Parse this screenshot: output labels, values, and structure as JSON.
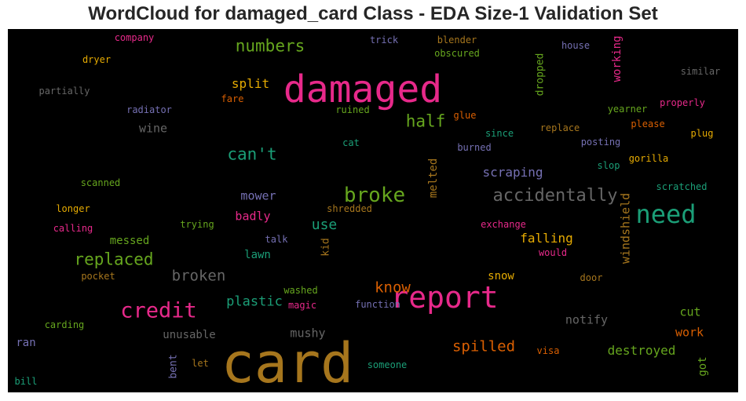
{
  "chart_data": {
    "type": "wordcloud",
    "title": "WordCloud for damaged_card Class - EDA Size-1 Validation Set",
    "colors": {
      "pink": "#e7298a",
      "gold": "#a6761d",
      "green": "#66a61e",
      "teal": "#1b9e77",
      "orange": "#d95f02",
      "purple": "#7570b3",
      "yellow": "#e6ab02",
      "gray": "#666666"
    },
    "words": [
      {
        "text": "card",
        "color": "gold",
        "orientation": "horizontal"
      },
      {
        "text": "damaged",
        "color": "pink",
        "orientation": "horizontal"
      },
      {
        "text": "report",
        "color": "pink",
        "orientation": "horizontal"
      },
      {
        "text": "need",
        "color": "teal",
        "orientation": "horizontal"
      },
      {
        "text": "credit",
        "color": "pink",
        "orientation": "horizontal"
      },
      {
        "text": "broke",
        "color": "green",
        "orientation": "horizontal"
      },
      {
        "text": "accidentally",
        "color": "gray",
        "orientation": "horizontal"
      },
      {
        "text": "replaced",
        "color": "green",
        "orientation": "horizontal"
      },
      {
        "text": "can't",
        "color": "teal",
        "orientation": "horizontal"
      },
      {
        "text": "numbers",
        "color": "green",
        "orientation": "horizontal"
      },
      {
        "text": "half",
        "color": "green",
        "orientation": "horizontal"
      },
      {
        "text": "broken",
        "color": "gray",
        "orientation": "horizontal"
      },
      {
        "text": "spilled",
        "color": "orange",
        "orientation": "horizontal"
      },
      {
        "text": "know",
        "color": "orange",
        "orientation": "horizontal"
      },
      {
        "text": "plastic",
        "color": "teal",
        "orientation": "horizontal"
      },
      {
        "text": "use",
        "color": "teal",
        "orientation": "horizontal"
      },
      {
        "text": "scraping",
        "color": "purple",
        "orientation": "horizontal"
      },
      {
        "text": "falling",
        "color": "yellow",
        "orientation": "horizontal"
      },
      {
        "text": "destroyed",
        "color": "green",
        "orientation": "horizontal"
      },
      {
        "text": "split",
        "color": "yellow",
        "orientation": "horizontal"
      },
      {
        "text": "working",
        "color": "pink",
        "orientation": "vertical"
      },
      {
        "text": "windshield",
        "color": "gold",
        "orientation": "vertical"
      },
      {
        "text": "melted",
        "color": "gold",
        "orientation": "vertical"
      },
      {
        "text": "mower",
        "color": "purple",
        "orientation": "horizontal"
      },
      {
        "text": "badly",
        "color": "pink",
        "orientation": "horizontal"
      },
      {
        "text": "messed",
        "color": "green",
        "orientation": "horizontal"
      },
      {
        "text": "lawn",
        "color": "teal",
        "orientation": "horizontal"
      },
      {
        "text": "wine",
        "color": "gray",
        "orientation": "horizontal"
      },
      {
        "text": "mushy",
        "color": "gray",
        "orientation": "horizontal"
      },
      {
        "text": "unusable",
        "color": "gray",
        "orientation": "horizontal"
      },
      {
        "text": "notify",
        "color": "gray",
        "orientation": "horizontal"
      },
      {
        "text": "snow",
        "color": "yellow",
        "orientation": "horizontal"
      },
      {
        "text": "cut",
        "color": "green",
        "orientation": "horizontal"
      },
      {
        "text": "work",
        "color": "orange",
        "orientation": "horizontal"
      },
      {
        "text": "got",
        "color": "green",
        "orientation": "vertical"
      },
      {
        "text": "bent",
        "color": "purple",
        "orientation": "vertical"
      },
      {
        "text": "kid",
        "color": "gold",
        "orientation": "vertical"
      },
      {
        "text": "ran",
        "color": "purple",
        "orientation": "horizontal"
      },
      {
        "text": "dropped",
        "color": "green",
        "orientation": "vertical"
      },
      {
        "text": "company",
        "color": "pink",
        "orientation": "horizontal"
      },
      {
        "text": "dryer",
        "color": "yellow",
        "orientation": "horizontal"
      },
      {
        "text": "partially",
        "color": "gray",
        "orientation": "horizontal"
      },
      {
        "text": "radiator",
        "color": "purple",
        "orientation": "horizontal"
      },
      {
        "text": "fare",
        "color": "orange",
        "orientation": "horizontal"
      },
      {
        "text": "trick",
        "color": "purple",
        "orientation": "horizontal"
      },
      {
        "text": "blender",
        "color": "gold",
        "orientation": "horizontal"
      },
      {
        "text": "obscured",
        "color": "green",
        "orientation": "horizontal"
      },
      {
        "text": "house",
        "color": "purple",
        "orientation": "horizontal"
      },
      {
        "text": "similar",
        "color": "gray",
        "orientation": "horizontal"
      },
      {
        "text": "ruined",
        "color": "green",
        "orientation": "horizontal"
      },
      {
        "text": "glue",
        "color": "orange",
        "orientation": "horizontal"
      },
      {
        "text": "yearner",
        "color": "green",
        "orientation": "horizontal"
      },
      {
        "text": "properly",
        "color": "pink",
        "orientation": "horizontal"
      },
      {
        "text": "since",
        "color": "teal",
        "orientation": "horizontal"
      },
      {
        "text": "replace",
        "color": "gold",
        "orientation": "horizontal"
      },
      {
        "text": "please",
        "color": "orange",
        "orientation": "horizontal"
      },
      {
        "text": "plug",
        "color": "yellow",
        "orientation": "horizontal"
      },
      {
        "text": "cat",
        "color": "teal",
        "orientation": "horizontal"
      },
      {
        "text": "burned",
        "color": "purple",
        "orientation": "horizontal"
      },
      {
        "text": "posting",
        "color": "purple",
        "orientation": "horizontal"
      },
      {
        "text": "gorilla",
        "color": "yellow",
        "orientation": "horizontal"
      },
      {
        "text": "slop",
        "color": "teal",
        "orientation": "horizontal"
      },
      {
        "text": "scratched",
        "color": "teal",
        "orientation": "horizontal"
      },
      {
        "text": "scanned",
        "color": "green",
        "orientation": "horizontal"
      },
      {
        "text": "longer",
        "color": "yellow",
        "orientation": "horizontal"
      },
      {
        "text": "trying",
        "color": "green",
        "orientation": "horizontal"
      },
      {
        "text": "shredded",
        "color": "gold",
        "orientation": "horizontal"
      },
      {
        "text": "calling",
        "color": "pink",
        "orientation": "horizontal"
      },
      {
        "text": "talk",
        "color": "purple",
        "orientation": "horizontal"
      },
      {
        "text": "exchange",
        "color": "pink",
        "orientation": "horizontal"
      },
      {
        "text": "would",
        "color": "pink",
        "orientation": "horizontal"
      },
      {
        "text": "pocket",
        "color": "gold",
        "orientation": "horizontal"
      },
      {
        "text": "washed",
        "color": "green",
        "orientation": "horizontal"
      },
      {
        "text": "magic",
        "color": "pink",
        "orientation": "horizontal"
      },
      {
        "text": "function",
        "color": "purple",
        "orientation": "horizontal"
      },
      {
        "text": "door",
        "color": "gold",
        "orientation": "horizontal"
      },
      {
        "text": "carding",
        "color": "green",
        "orientation": "horizontal"
      },
      {
        "text": "visa",
        "color": "orange",
        "orientation": "horizontal"
      },
      {
        "text": "let",
        "color": "gold",
        "orientation": "horizontal"
      },
      {
        "text": "someone",
        "color": "teal",
        "orientation": "horizontal"
      },
      {
        "text": "bill",
        "color": "teal",
        "orientation": "horizontal"
      }
    ]
  }
}
